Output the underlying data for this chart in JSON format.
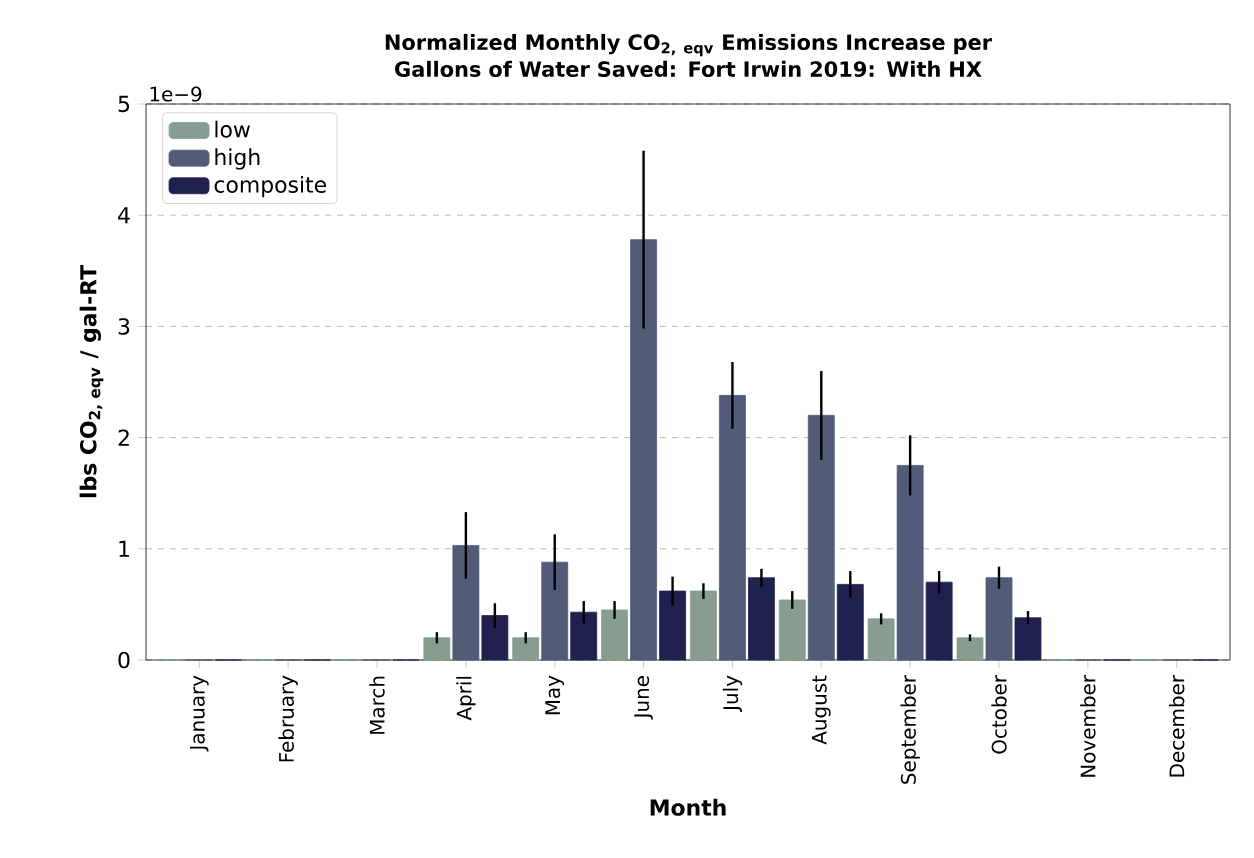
{
  "chart_data": {
    "type": "bar",
    "title": "Normalized Monthly CO$_{2, eqv}$ Emissions Increase per Gallons of Water Saved: Fort Irwin 2019: With HX",
    "xlabel": "Month",
    "ylabel": "lbs CO$_{2, eqv}$ / gal-RT",
    "categories": [
      "January",
      "February",
      "March",
      "April",
      "May",
      "June",
      "July",
      "August",
      "September",
      "October",
      "November",
      "December"
    ],
    "series": [
      {
        "name": "low",
        "color": "#869d8f",
        "values": [
          0,
          0,
          0,
          0.2,
          0.2,
          0.45,
          0.62,
          0.54,
          0.37,
          0.2,
          0,
          0
        ],
        "errors": [
          null,
          null,
          null,
          0.05,
          0.05,
          0.08,
          0.07,
          0.08,
          0.05,
          0.03,
          null,
          null
        ]
      },
      {
        "name": "high",
        "color": "#525b78",
        "values": [
          0,
          0,
          0,
          1.03,
          0.88,
          3.78,
          2.38,
          2.2,
          1.75,
          0.74,
          0,
          0
        ],
        "errors": [
          null,
          null,
          null,
          0.3,
          0.25,
          0.8,
          0.3,
          0.4,
          0.27,
          0.1,
          null,
          null
        ]
      },
      {
        "name": "composite",
        "color": "#212150",
        "values": [
          0,
          0,
          0,
          0.4,
          0.43,
          0.62,
          0.74,
          0.68,
          0.7,
          0.38,
          0,
          0
        ],
        "errors": [
          null,
          null,
          null,
          0.11,
          0.1,
          0.13,
          0.08,
          0.12,
          0.1,
          0.06,
          null,
          null
        ]
      }
    ],
    "ylim": [
      0,
      5
    ],
    "yticks": [
      0,
      1,
      2,
      3,
      4,
      5
    ],
    "annotations": [
      "1e−9"
    ],
    "grid": "y",
    "legend": "top left"
  }
}
